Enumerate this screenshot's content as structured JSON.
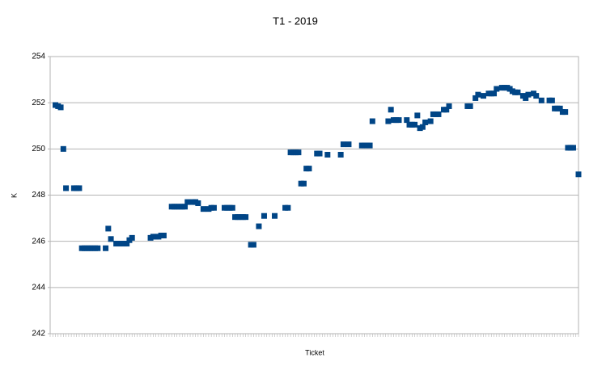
{
  "chart_data": {
    "type": "scatter",
    "title": "T1 - 2019",
    "x_label": "Ticket",
    "y_label": "K",
    "color": "#004586",
    "grid": true,
    "xlim": [
      0,
      200
    ],
    "ylim": [
      242,
      254
    ],
    "yticks": [
      242,
      244,
      246,
      248,
      250,
      252,
      254
    ],
    "x": [
      2,
      3,
      4,
      5,
      6,
      9,
      10,
      11,
      12,
      13,
      14,
      15,
      16,
      17,
      18,
      21,
      22,
      23,
      25,
      26,
      27,
      28,
      29,
      30,
      31,
      38,
      39,
      40,
      41,
      42,
      43,
      46,
      47,
      48,
      49,
      50,
      51,
      52,
      54,
      55,
      56,
      58,
      60,
      61,
      62,
      66,
      67,
      68,
      69,
      70,
      71,
      72,
      73,
      74,
      76,
      77,
      79,
      81,
      85,
      89,
      90,
      91,
      92,
      93,
      94,
      95,
      96,
      97,
      98,
      101,
      102,
      105,
      110,
      111,
      113,
      118,
      119,
      120,
      121,
      122,
      128,
      129,
      130,
      131,
      132,
      135,
      136,
      137,
      138,
      139,
      140,
      141,
      142,
      144,
      145,
      146,
      147,
      149,
      150,
      151,
      158,
      159,
      161,
      162,
      164,
      166,
      167,
      168,
      169,
      171,
      172,
      173,
      174,
      175,
      176,
      177,
      179,
      180,
      181,
      183,
      184,
      186,
      189,
      190,
      191,
      192,
      193,
      194,
      195,
      196,
      197,
      198,
      200
    ],
    "values": [
      251.9,
      251.85,
      251.8,
      250.0,
      248.3,
      248.3,
      248.3,
      248.3,
      245.7,
      245.7,
      245.7,
      245.7,
      245.7,
      245.7,
      245.7,
      245.7,
      246.55,
      246.1,
      245.9,
      245.9,
      245.9,
      245.9,
      245.9,
      246.05,
      246.15,
      246.15,
      246.2,
      246.2,
      246.2,
      246.25,
      246.25,
      247.5,
      247.5,
      247.5,
      247.5,
      247.5,
      247.5,
      247.7,
      247.7,
      247.7,
      247.65,
      247.4,
      247.4,
      247.45,
      247.45,
      247.45,
      247.45,
      247.45,
      247.45,
      247.05,
      247.05,
      247.05,
      247.05,
      247.05,
      245.85,
      245.85,
      246.65,
      247.1,
      247.1,
      247.45,
      247.45,
      249.85,
      249.85,
      249.85,
      249.85,
      248.5,
      248.5,
      249.15,
      249.15,
      249.8,
      249.8,
      249.75,
      249.75,
      250.2,
      250.2,
      250.15,
      250.15,
      250.15,
      250.15,
      251.2,
      251.2,
      251.7,
      251.25,
      251.25,
      251.25,
      251.25,
      251.05,
      251.05,
      251.05,
      251.45,
      250.9,
      250.95,
      251.15,
      251.2,
      251.5,
      251.5,
      251.5,
      251.7,
      251.7,
      251.85,
      251.85,
      251.85,
      252.2,
      252.35,
      252.3,
      252.4,
      252.4,
      252.4,
      252.6,
      252.65,
      252.65,
      252.65,
      252.6,
      252.5,
      252.45,
      252.45,
      252.3,
      252.2,
      252.35,
      252.4,
      252.3,
      252.1,
      252.1,
      252.1,
      251.75,
      251.75,
      251.75,
      251.6,
      251.6,
      250.05,
      250.05,
      250.05,
      248.9
    ]
  }
}
